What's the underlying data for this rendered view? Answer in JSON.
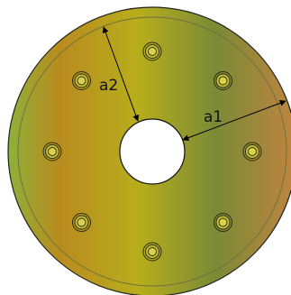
{
  "diagram": {
    "labels": {
      "a1": "a1",
      "a2": "a2"
    },
    "colors": {
      "background": "#ffffff",
      "outline": "#222222",
      "inner_ring": "#6e6e40",
      "arrow": "#000000",
      "hole_fill": "#ffffff",
      "gradient_stops": [
        "#8fb03a",
        "#b98b1e",
        "#b8ae1c",
        "#7a8a36",
        "#c08440"
      ]
    },
    "bolt_count": 8
  }
}
